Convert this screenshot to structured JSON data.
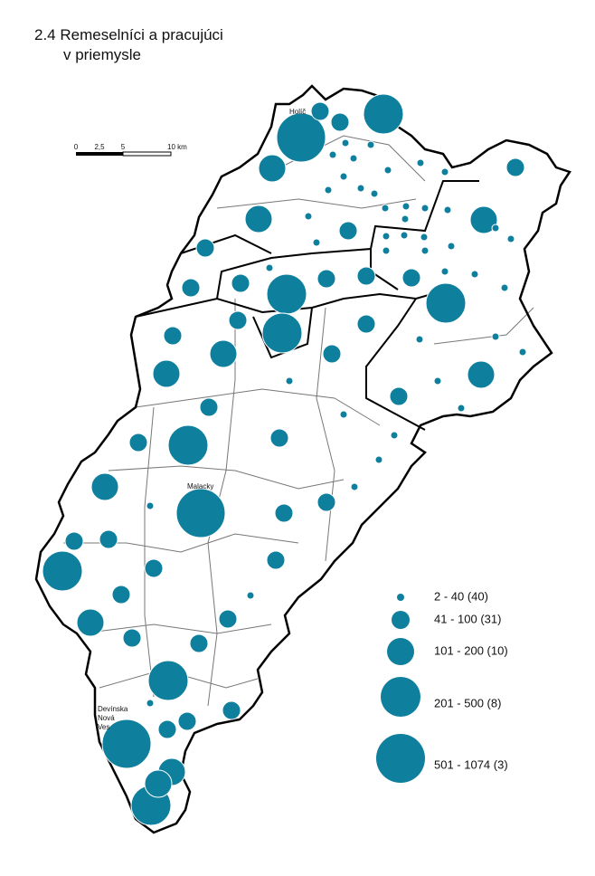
{
  "title": [
    "2.4 Remeselníci a pracujúci",
    "v priemysle"
  ],
  "scale_bar": {
    "ticks": [
      "0",
      "2,5",
      "5",
      "10 km"
    ]
  },
  "places": {
    "holic": "Holíč",
    "malacky": "Malacky",
    "devinska": [
      "Devínska",
      "Nová",
      "Ves"
    ]
  },
  "legend": [
    "2 - 40 (40)",
    "41 - 100 (31)",
    "101 - 200 (10)",
    "201 - 500 (8)",
    "501 - 1074 (3)"
  ]
}
